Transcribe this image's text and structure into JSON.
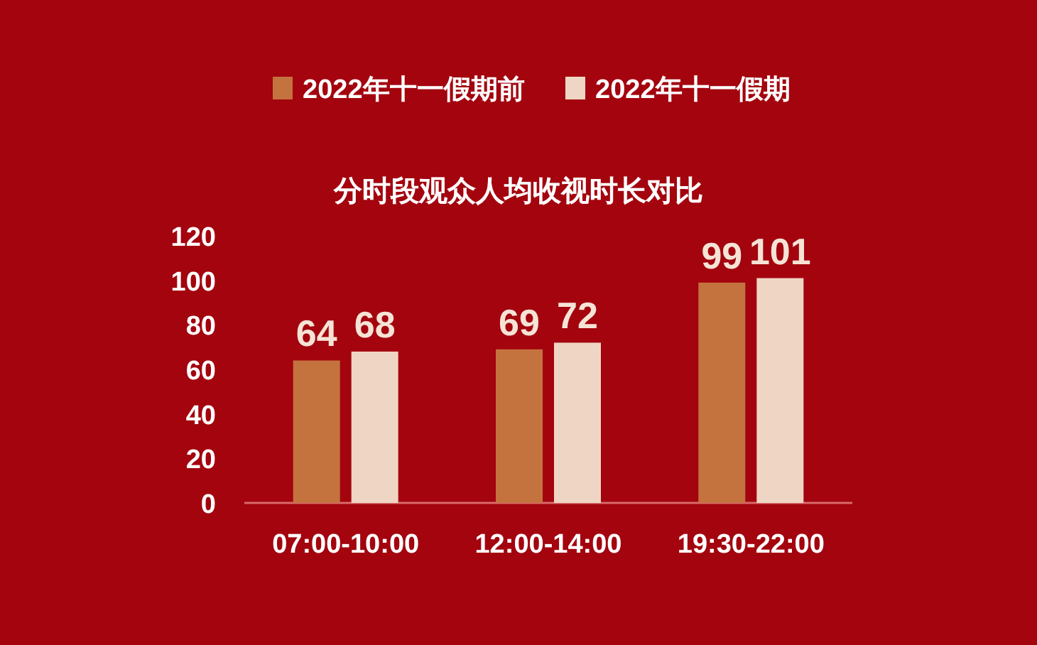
{
  "chart_data": {
    "type": "bar",
    "title": "分时段观众人均收视时长对比",
    "categories": [
      "07:00-10:00",
      "12:00-14:00",
      "19:30-22:00"
    ],
    "series": [
      {
        "name": "2022年十一假期前",
        "color": "#c4733f",
        "values": [
          64,
          69,
          99
        ]
      },
      {
        "name": "2022年十一假期",
        "color": "#efd6c4",
        "values": [
          68,
          72,
          101
        ]
      }
    ],
    "ylim": [
      0,
      120
    ],
    "yticks": [
      0,
      20,
      40,
      60,
      80,
      100,
      120
    ],
    "data_labels": true,
    "legend": "top"
  }
}
